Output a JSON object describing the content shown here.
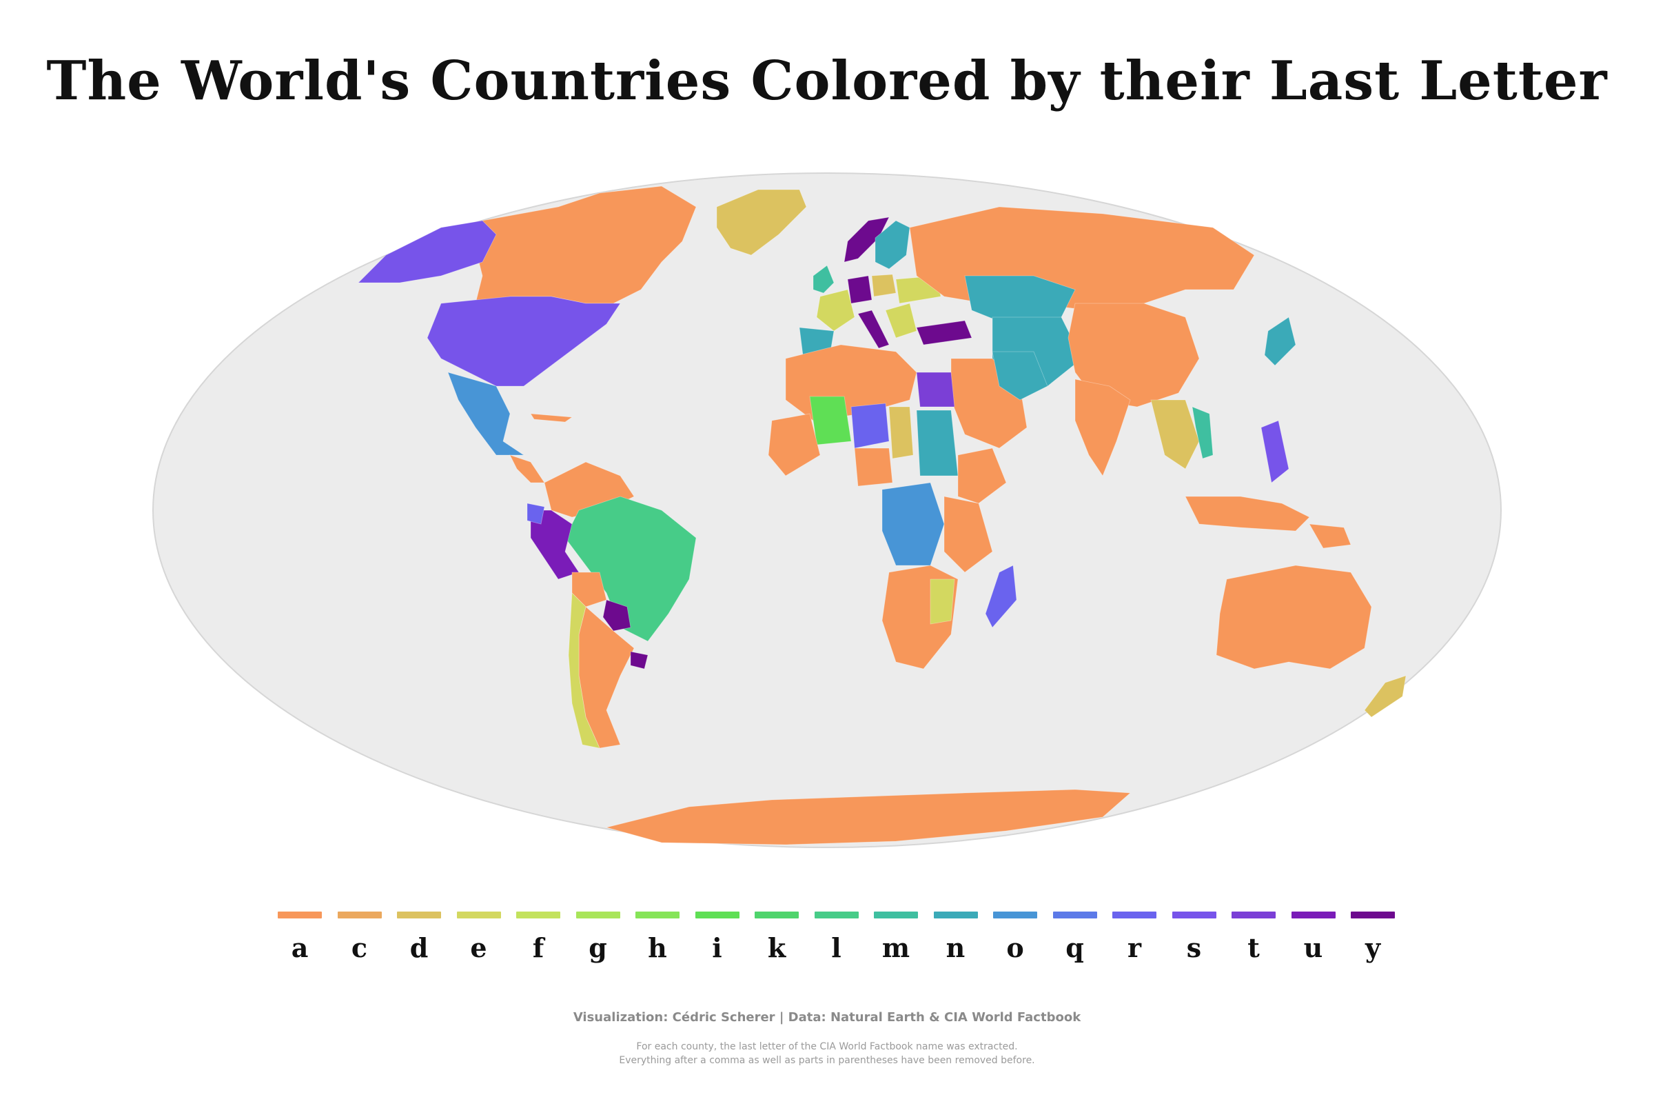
{
  "title": "The World's Countries Colored by their Last Letter",
  "legend": {
    "items": [
      {
        "letter": "a",
        "color": "#f7975a"
      },
      {
        "letter": "c",
        "color": "#eba85e"
      },
      {
        "letter": "d",
        "color": "#dcc260"
      },
      {
        "letter": "e",
        "color": "#d3d860"
      },
      {
        "letter": "f",
        "color": "#c3e25d"
      },
      {
        "letter": "g",
        "color": "#a9e55a"
      },
      {
        "letter": "h",
        "color": "#86e458"
      },
      {
        "letter": "i",
        "color": "#5fdf55"
      },
      {
        "letter": "k",
        "color": "#4fd46c"
      },
      {
        "letter": "l",
        "color": "#47cc88"
      },
      {
        "letter": "m",
        "color": "#3fbfa0"
      },
      {
        "letter": "n",
        "color": "#3baab8"
      },
      {
        "letter": "o",
        "color": "#4895d6"
      },
      {
        "letter": "q",
        "color": "#5c7ae8"
      },
      {
        "letter": "r",
        "color": "#6a63ee"
      },
      {
        "letter": "s",
        "color": "#7754ea"
      },
      {
        "letter": "t",
        "color": "#7b3fd6"
      },
      {
        "letter": "u",
        "color": "#7a1cb8"
      },
      {
        "letter": "y",
        "color": "#6d0a8e"
      }
    ]
  },
  "map": {
    "ocean_color": "#ececec",
    "projection": "mollweide"
  },
  "credit": "Visualization: Cédric Scherer | Data: Natural Earth & CIA World Factbook",
  "note": {
    "line1": "For each county, the last letter of the CIA World Factbook name was extracted.",
    "line2": "Everything after a comma as well as parts in parentheses have been removed before."
  }
}
